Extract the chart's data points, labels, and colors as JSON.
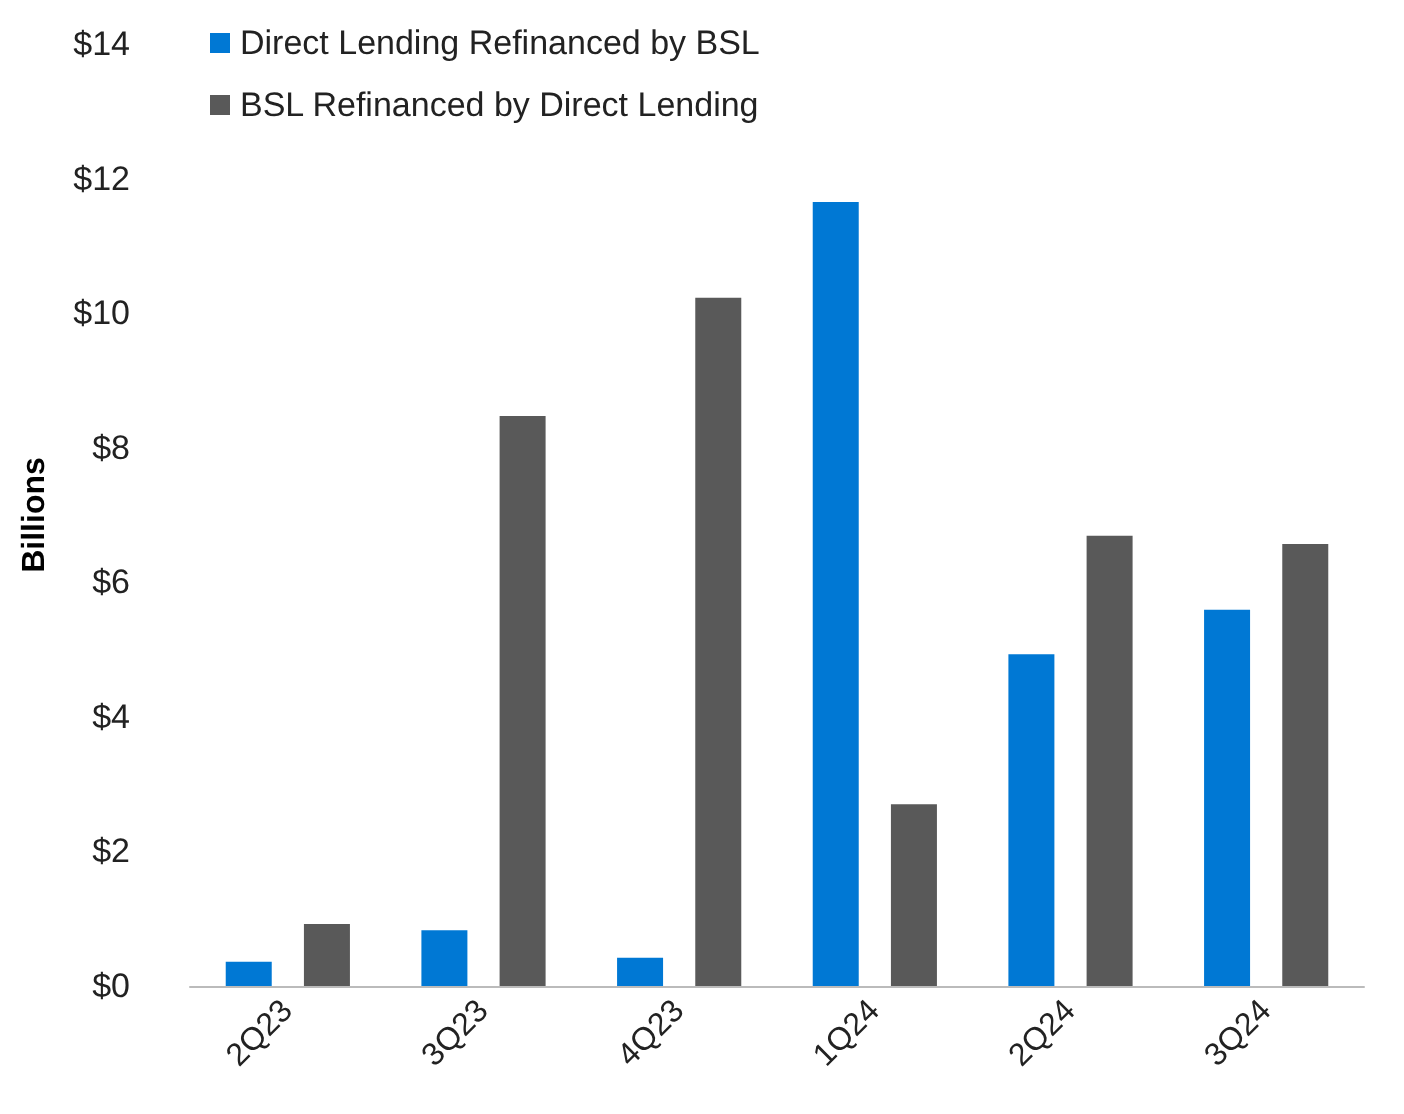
{
  "chart_data": {
    "type": "bar",
    "ylabel": "Billions",
    "categories": [
      "2Q23",
      "3Q23",
      "4Q23",
      "1Q24",
      "2Q24",
      "3Q24"
    ],
    "series": [
      {
        "name": "Direct Lending Refinanced by BSL",
        "color": "#0078d4",
        "values": [
          0.36,
          0.83,
          0.42,
          11.65,
          4.93,
          5.59
        ]
      },
      {
        "name": "BSL Refinanced by Direct Lending",
        "color": "#595959",
        "values": [
          0.92,
          8.47,
          10.23,
          2.7,
          6.69,
          6.57
        ]
      }
    ],
    "ylim": [
      0,
      14
    ],
    "yticks": [
      {
        "value": 0,
        "label": "$0"
      },
      {
        "value": 2,
        "label": "$2"
      },
      {
        "value": 4,
        "label": "$4"
      },
      {
        "value": 6,
        "label": "$6"
      },
      {
        "value": 8,
        "label": "$8"
      },
      {
        "value": 10,
        "label": "$10"
      },
      {
        "value": 12,
        "label": "$12"
      },
      {
        "value": 14,
        "label": "$14"
      }
    ],
    "grid": false,
    "legend": "top left"
  }
}
